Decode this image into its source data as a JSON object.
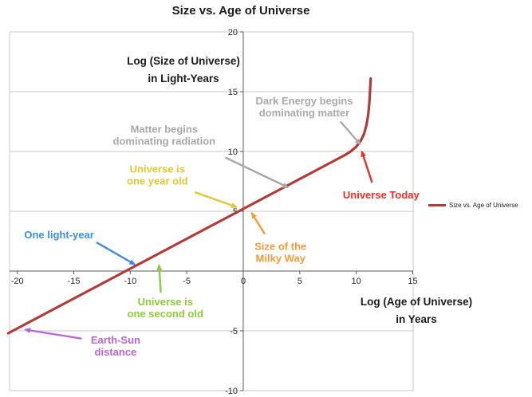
{
  "chart_data": {
    "type": "line",
    "title": "Size vs. Age of Universe",
    "xlabel_lines": [
      "Log (Age of Universe)",
      "in Years"
    ],
    "ylabel_lines": [
      "Log (Size of Universe)",
      "in Light-Years"
    ],
    "xlim": [
      -20,
      15
    ],
    "ylim": [
      -10,
      20
    ],
    "xticks": [
      -20,
      -15,
      -10,
      -5,
      0,
      5,
      10,
      15
    ],
    "yticks": [
      -10,
      -5,
      0,
      5,
      10,
      15,
      20
    ],
    "grid": "horizontal",
    "legend": {
      "label": "Size vs. Age of Universe",
      "position": "right"
    },
    "series": [
      {
        "name": "Size vs. Age of Universe",
        "color": "#b23b38",
        "points": [
          [
            -20.8,
            -5.2
          ],
          [
            -18,
            -3.8
          ],
          [
            -16,
            -2.8
          ],
          [
            -14,
            -1.8
          ],
          [
            -12,
            -0.8
          ],
          [
            -10,
            0.2
          ],
          [
            -8,
            1.2
          ],
          [
            -6,
            2.2
          ],
          [
            -4,
            3.2
          ],
          [
            -2,
            4.2
          ],
          [
            0,
            5.2
          ],
          [
            2,
            6.2
          ],
          [
            4,
            7.2
          ],
          [
            6,
            8.2
          ],
          [
            8,
            9.2
          ],
          [
            9,
            9.7
          ],
          [
            9.5,
            10.0
          ],
          [
            10,
            10.4
          ],
          [
            10.4,
            10.9
          ],
          [
            10.7,
            11.5
          ],
          [
            10.9,
            12.2
          ],
          [
            11.05,
            13.0
          ],
          [
            11.15,
            14.0
          ],
          [
            11.22,
            15.0
          ],
          [
            11.28,
            16.1
          ]
        ]
      }
    ],
    "annotations": [
      {
        "id": "dark-energy",
        "lines": [
          "Dark Energy begins",
          "dominating matter"
        ],
        "color": "#a8a8a8",
        "text_xy": [
          5.4,
          13.7
        ],
        "arrow_from": [
          8.6,
          12.5
        ],
        "arrow_to": [
          10.35,
          10.6
        ]
      },
      {
        "id": "matter-radiation",
        "lines": [
          "Matter begins",
          "dominating radiation"
        ],
        "color": "#a8a8a8",
        "text_xy": [
          -7.0,
          11.35
        ],
        "arrow_from": [
          -1.6,
          9.5
        ],
        "arrow_to": [
          3.95,
          7.0
        ]
      },
      {
        "id": "universe-one-year",
        "lines": [
          "Universe is",
          "one year old"
        ],
        "color": "#e0c832",
        "text_xy": [
          -7.6,
          8.0
        ],
        "arrow_from": [
          -4.3,
          6.6
        ],
        "arrow_to": [
          -0.6,
          5.35
        ]
      },
      {
        "id": "universe-today",
        "lines": [
          "Universe Today"
        ],
        "color": "#ee2e24",
        "text_xy": [
          12.2,
          6.35
        ],
        "arrow_from": [
          11.4,
          7.4
        ],
        "arrow_to": [
          10.5,
          10.0
        ]
      },
      {
        "id": "milky-way",
        "lines": [
          "Size of the",
          "Milky Way"
        ],
        "color": "#f29c38",
        "text_xy": [
          3.3,
          1.55
        ],
        "arrow_from": [
          1.9,
          3.1
        ],
        "arrow_to": [
          0.75,
          4.85
        ]
      },
      {
        "id": "one-light-year",
        "lines": [
          "One light-year"
        ],
        "color": "#3b8ede",
        "text_xy": [
          -16.3,
          3.0
        ],
        "arrow_from": [
          -13.0,
          2.4
        ],
        "arrow_to": [
          -9.6,
          0.55
        ]
      },
      {
        "id": "universe-one-second",
        "lines": [
          "Universe is",
          "one second old"
        ],
        "color": "#8fca3a",
        "text_xy": [
          -6.9,
          -3.1
        ],
        "arrow_from": [
          -7.3,
          -1.8
        ],
        "arrow_to": [
          -7.45,
          0.5
        ]
      },
      {
        "id": "earth-sun",
        "lines": [
          "Earth-Sun",
          "distance"
        ],
        "color": "#b666d2",
        "text_xy": [
          -11.3,
          -6.3
        ],
        "arrow_from": [
          -14.3,
          -5.65
        ],
        "arrow_to": [
          -19.3,
          -4.9
        ]
      }
    ]
  }
}
